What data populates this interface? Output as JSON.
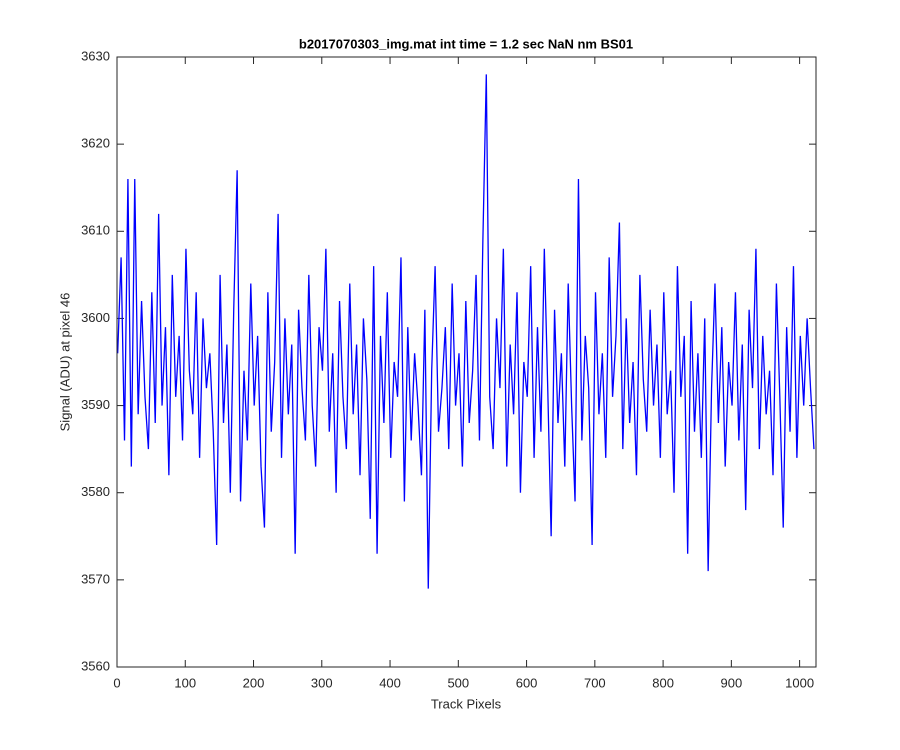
{
  "chart_data": {
    "type": "line",
    "title": "b2017070303_img.mat int time = 1.2 sec  NaN nm BS01",
    "x_label": "Track Pixels",
    "y_label": "Signal (ADU) at pixel 46",
    "xlim": [
      0,
      1024
    ],
    "ylim": [
      3560,
      3630
    ],
    "xticks": [
      0,
      100,
      200,
      300,
      400,
      500,
      600,
      700,
      800,
      900,
      1000
    ],
    "yticks": [
      3560,
      3570,
      3580,
      3590,
      3600,
      3610,
      3620,
      3630
    ],
    "grid": false,
    "x": [
      1,
      6,
      11,
      16,
      21,
      26,
      31,
      36,
      41,
      46,
      51,
      56,
      61,
      66,
      71,
      76,
      81,
      86,
      91,
      96,
      101,
      106,
      111,
      116,
      121,
      126,
      131,
      136,
      141,
      146,
      151,
      156,
      161,
      166,
      171,
      176,
      181,
      186,
      191,
      196,
      201,
      206,
      211,
      216,
      221,
      226,
      231,
      236,
      241,
      246,
      251,
      256,
      261,
      266,
      271,
      276,
      281,
      286,
      291,
      296,
      301,
      306,
      311,
      316,
      321,
      326,
      331,
      336,
      341,
      346,
      351,
      356,
      361,
      366,
      371,
      376,
      381,
      386,
      391,
      396,
      401,
      406,
      411,
      416,
      421,
      426,
      431,
      436,
      441,
      446,
      451,
      456,
      461,
      466,
      471,
      476,
      481,
      486,
      491,
      496,
      501,
      506,
      511,
      516,
      521,
      526,
      531,
      536,
      541,
      546,
      551,
      556,
      561,
      566,
      571,
      576,
      581,
      586,
      591,
      596,
      601,
      606,
      611,
      616,
      621,
      626,
      631,
      636,
      641,
      646,
      651,
      656,
      661,
      666,
      671,
      676,
      681,
      686,
      691,
      696,
      701,
      706,
      711,
      716,
      721,
      726,
      731,
      736,
      741,
      746,
      751,
      756,
      761,
      766,
      771,
      776,
      781,
      786,
      791,
      796,
      801,
      806,
      811,
      816,
      821,
      826,
      831,
      836,
      841,
      846,
      851,
      856,
      861,
      866,
      871,
      876,
      881,
      886,
      891,
      896,
      901,
      906,
      911,
      916,
      921,
      926,
      931,
      936,
      941,
      946,
      951,
      956,
      961,
      966,
      971,
      976,
      981,
      986,
      991,
      996,
      1001,
      1006,
      1011,
      1016,
      1021
    ],
    "series": [
      {
        "name": "signal",
        "color": "#0000ff",
        "values": [
          3596,
          3607,
          3586,
          3616,
          3583,
          3616,
          3589,
          3602,
          3591,
          3585,
          3603,
          3588,
          3612,
          3590,
          3599,
          3582,
          3605,
          3591,
          3598,
          3586,
          3608,
          3594,
          3589,
          3603,
          3584,
          3600,
          3592,
          3596,
          3587,
          3574,
          3605,
          3588,
          3597,
          3580,
          3601,
          3617,
          3579,
          3594,
          3586,
          3604,
          3590,
          3598,
          3583,
          3576,
          3603,
          3587,
          3595,
          3612,
          3584,
          3600,
          3589,
          3597,
          3573,
          3601,
          3592,
          3586,
          3605,
          3590,
          3583,
          3599,
          3594,
          3608,
          3587,
          3596,
          3580,
          3602,
          3591,
          3585,
          3604,
          3589,
          3597,
          3582,
          3600,
          3593,
          3577,
          3606,
          3573,
          3598,
          3588,
          3603,
          3584,
          3595,
          3591,
          3607,
          3579,
          3599,
          3586,
          3596,
          3590,
          3582,
          3601,
          3569,
          3594,
          3606,
          3587,
          3592,
          3599,
          3585,
          3604,
          3590,
          3596,
          3583,
          3602,
          3588,
          3594,
          3605,
          3586,
          3609,
          3628,
          3591,
          3585,
          3600,
          3592,
          3608,
          3583,
          3597,
          3589,
          3603,
          3580,
          3595,
          3591,
          3606,
          3584,
          3599,
          3587,
          3608,
          3592,
          3575,
          3601,
          3588,
          3596,
          3583,
          3604,
          3590,
          3579,
          3616,
          3586,
          3598,
          3592,
          3574,
          3603,
          3589,
          3596,
          3584,
          3607,
          3591,
          3598,
          3611,
          3585,
          3600,
          3588,
          3595,
          3582,
          3605,
          3593,
          3587,
          3601,
          3590,
          3597,
          3584,
          3603,
          3589,
          3594,
          3580,
          3606,
          3591,
          3598,
          3573,
          3602,
          3587,
          3596,
          3584,
          3600,
          3571,
          3592,
          3604,
          3588,
          3599,
          3583,
          3595,
          3590,
          3603,
          3586,
          3597,
          3578,
          3601,
          3592,
          3608,
          3585,
          3598,
          3589,
          3594,
          3582,
          3604,
          3591,
          3576,
          3599,
          3587,
          3606,
          3584,
          3598,
          3590,
          3600,
          3592,
          3585
        ]
      }
    ]
  }
}
